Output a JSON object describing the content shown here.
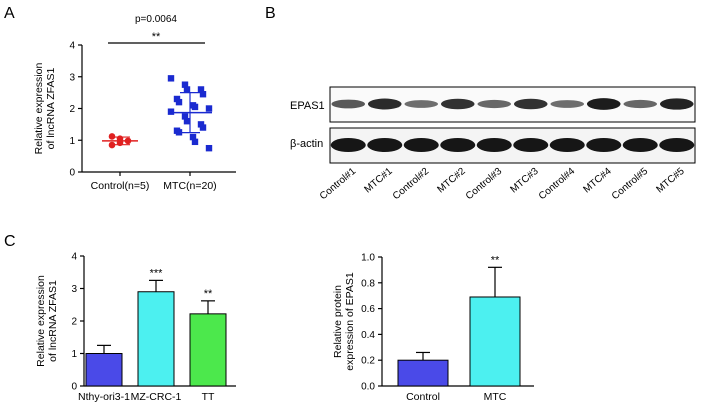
{
  "panels": {
    "A": "A",
    "B": "B",
    "C": "C"
  },
  "colors": {
    "control_dots": "#e02020",
    "mtc_dots": "#1a2ad0",
    "bar_nthy": "#4a4ae8",
    "bar_mz": "#4cf0f0",
    "bar_tt": "#4ce84c",
    "bar_control": "#4a4ae8",
    "bar_mtc": "#4cf0f0"
  },
  "blot": {
    "rows": [
      "EPAS1",
      "β-actin"
    ],
    "lanes": [
      "Control#1",
      "MTC#1",
      "Control#2",
      "MTC#2",
      "Control#3",
      "MTC#3",
      "Control#4",
      "MTC#4",
      "Control#5",
      "MTC#5"
    ],
    "epas1_intensity": [
      0.55,
      0.85,
      0.4,
      0.8,
      0.45,
      0.8,
      0.4,
      0.95,
      0.45,
      0.9
    ]
  },
  "chart_data": [
    {
      "panel": "A",
      "type": "scatter",
      "categories": [
        "Control(n=5)",
        "MTC(n=20)"
      ],
      "ylabel": "Relative expression of lncRNA ZFAS1",
      "ylim": [
        0,
        4
      ],
      "yticks": [
        "0",
        "1",
        "2",
        "3",
        "4"
      ],
      "p_value_label": "p=0.0064",
      "significance": "**",
      "series": [
        {
          "category": "Control(n=5)",
          "points": [
            1.12,
            1.05,
            0.98,
            0.85,
            0.92
          ],
          "mean": 0.98,
          "sd": 0.12
        },
        {
          "category": "MTC(n=20)",
          "points": [
            2.95,
            2.75,
            2.6,
            2.6,
            2.45,
            2.3,
            2.2,
            2.1,
            2.05,
            2.0,
            1.9,
            1.75,
            1.6,
            1.5,
            1.4,
            1.3,
            1.25,
            1.1,
            0.95,
            0.75
          ],
          "mean": 1.87,
          "sd": 0.63
        }
      ]
    },
    {
      "panel": "C",
      "type": "bar",
      "categories": [
        "Nthy-ori3-1",
        "MZ-CRC-1",
        "TT"
      ],
      "values": [
        1.0,
        2.9,
        2.22
      ],
      "errors": [
        0.25,
        0.35,
        0.4
      ],
      "significance": [
        "",
        "***",
        "**"
      ],
      "ylabel": "Relative expression of lncRNA ZFAS1",
      "ylim": [
        0,
        4
      ],
      "yticks": [
        "0",
        "1",
        "2",
        "3",
        "4"
      ]
    },
    {
      "panel": "C-right",
      "type": "bar",
      "categories": [
        "Control",
        "MTC"
      ],
      "values": [
        0.2,
        0.69
      ],
      "errors": [
        0.06,
        0.23
      ],
      "significance": [
        "",
        "**"
      ],
      "ylabel": "Relative protein expression of EPAS1",
      "ylim": [
        0,
        1.0
      ],
      "yticks": [
        "0.0",
        "0.2",
        "0.4",
        "0.6",
        "0.8",
        "1.0"
      ]
    }
  ]
}
